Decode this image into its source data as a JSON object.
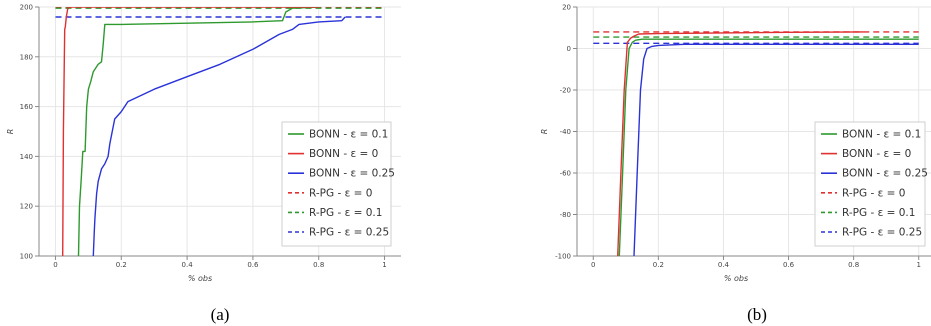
{
  "chart_data": [
    {
      "type": "line",
      "caption": "(a)",
      "xlabel": "% obs",
      "ylabel": "R",
      "xlim": [
        -0.05,
        1.05
      ],
      "ylim": [
        100,
        200
      ],
      "xticks": [
        "0",
        "0.2",
        "0.4",
        "0.6",
        "0.8",
        "1"
      ],
      "xtick_values": [
        0,
        0.2,
        0.4,
        0.6,
        0.8,
        1
      ],
      "yticks": [
        "100",
        "120",
        "140",
        "160",
        "180",
        "200"
      ],
      "ytick_values": [
        100,
        120,
        140,
        160,
        180,
        200
      ],
      "grid": true,
      "legend_position": "bottom-right",
      "series": [
        {
          "name": "BONN - ε = 0.1",
          "color": "#2e9a2e",
          "dash": false,
          "x": [
            0.07,
            0.073,
            0.078,
            0.083,
            0.09,
            0.095,
            0.1,
            0.107,
            0.115,
            0.13,
            0.14,
            0.145,
            0.15,
            0.2,
            0.4,
            0.6,
            0.69,
            0.7,
            0.72,
            0.8
          ],
          "y": [
            100,
            120,
            130,
            142,
            142,
            160,
            167,
            170,
            174,
            177,
            178,
            185,
            193,
            193,
            193.5,
            194,
            194.5,
            198,
            199.5,
            200
          ]
        },
        {
          "name": "BONN - ε = 0",
          "color": "#e03030",
          "dash": false,
          "x": [
            0.022,
            0.024,
            0.028,
            0.03,
            0.033,
            0.037,
            0.04,
            0.1,
            0.5,
            0.8
          ],
          "y": [
            100,
            150,
            191,
            192,
            196,
            199,
            200,
            200,
            200,
            200
          ]
        },
        {
          "name": "BONN - ε = 0.25",
          "color": "#2a33d8",
          "dash": false,
          "x": [
            0.115,
            0.118,
            0.12,
            0.125,
            0.13,
            0.14,
            0.15,
            0.16,
            0.165,
            0.18,
            0.2,
            0.22,
            0.3,
            0.4,
            0.5,
            0.6,
            0.68,
            0.7,
            0.72,
            0.74,
            0.8,
            0.87,
            0.88
          ],
          "y": [
            100,
            110,
            115,
            125,
            130,
            135,
            137,
            140,
            145,
            155,
            158,
            162,
            167,
            172,
            177,
            183,
            189,
            190,
            191,
            193,
            194,
            194.5,
            196
          ]
        },
        {
          "name": "R-PG - ε = 0",
          "color": "#e03030",
          "dash": true,
          "x": [
            0,
            1
          ],
          "y": [
            200,
            200
          ]
        },
        {
          "name": "R-PG - ε = 0.1",
          "color": "#2e9a2e",
          "dash": true,
          "x": [
            0,
            1
          ],
          "y": [
            199.5,
            199.5
          ]
        },
        {
          "name": "R-PG - ε = 0.25",
          "color": "#2a33d8",
          "dash": true,
          "x": [
            0,
            1
          ],
          "y": [
            196,
            196
          ]
        }
      ]
    },
    {
      "type": "line",
      "caption": "(b)",
      "xlabel": "% obs",
      "ylabel": "R",
      "xlim": [
        -0.05,
        1.05
      ],
      "ylim": [
        -100,
        20
      ],
      "xticks": [
        "0",
        "0.2",
        "0.4",
        "0.6",
        "0.8",
        "1"
      ],
      "xtick_values": [
        0,
        0.2,
        0.4,
        0.6,
        0.8,
        1
      ],
      "yticks": [
        "-100",
        "-80",
        "-60",
        "-40",
        "-20",
        "0",
        "20"
      ],
      "ytick_values": [
        -100,
        -80,
        -60,
        -40,
        -20,
        0,
        20
      ],
      "grid": true,
      "legend_position": "bottom-right",
      "series": [
        {
          "name": "BONN - ε = 0.1",
          "color": "#2e9a2e",
          "dash": false,
          "x": [
            0.08,
            0.09,
            0.1,
            0.11,
            0.12,
            0.13,
            0.15,
            0.2,
            0.4,
            0.6,
            0.8,
            1.0
          ],
          "y": [
            -100,
            -60,
            -20,
            0,
            3,
            4,
            4.5,
            4.5,
            4.5,
            4.5,
            4.5,
            4.5
          ]
        },
        {
          "name": "BONN - ε = 0",
          "color": "#e03030",
          "dash": false,
          "x": [
            0.075,
            0.085,
            0.095,
            0.105,
            0.115,
            0.125,
            0.14,
            0.2,
            0.4,
            0.6,
            0.83
          ],
          "y": [
            -100,
            -60,
            -20,
            3,
            5,
            6,
            7,
            7.2,
            7.5,
            7.8,
            8
          ]
        },
        {
          "name": "BONN - ε = 0.25",
          "color": "#2a33d8",
          "dash": false,
          "x": [
            0.125,
            0.135,
            0.145,
            0.155,
            0.165,
            0.18,
            0.2,
            0.28,
            0.4,
            0.6,
            0.8,
            1.0
          ],
          "y": [
            -100,
            -60,
            -20,
            -5,
            0,
            1,
            1.5,
            2,
            2,
            2,
            2,
            2
          ]
        },
        {
          "name": "R-PG - ε = 0",
          "color": "#e03030",
          "dash": true,
          "x": [
            0,
            1
          ],
          "y": [
            8,
            8
          ]
        },
        {
          "name": "R-PG - ε = 0.1",
          "color": "#2e9a2e",
          "dash": true,
          "x": [
            0,
            1
          ],
          "y": [
            5.5,
            5.5
          ]
        },
        {
          "name": "R-PG - ε = 0.25",
          "color": "#2a33d8",
          "dash": true,
          "x": [
            0,
            1
          ],
          "y": [
            2.5,
            2.5
          ]
        }
      ]
    }
  ]
}
